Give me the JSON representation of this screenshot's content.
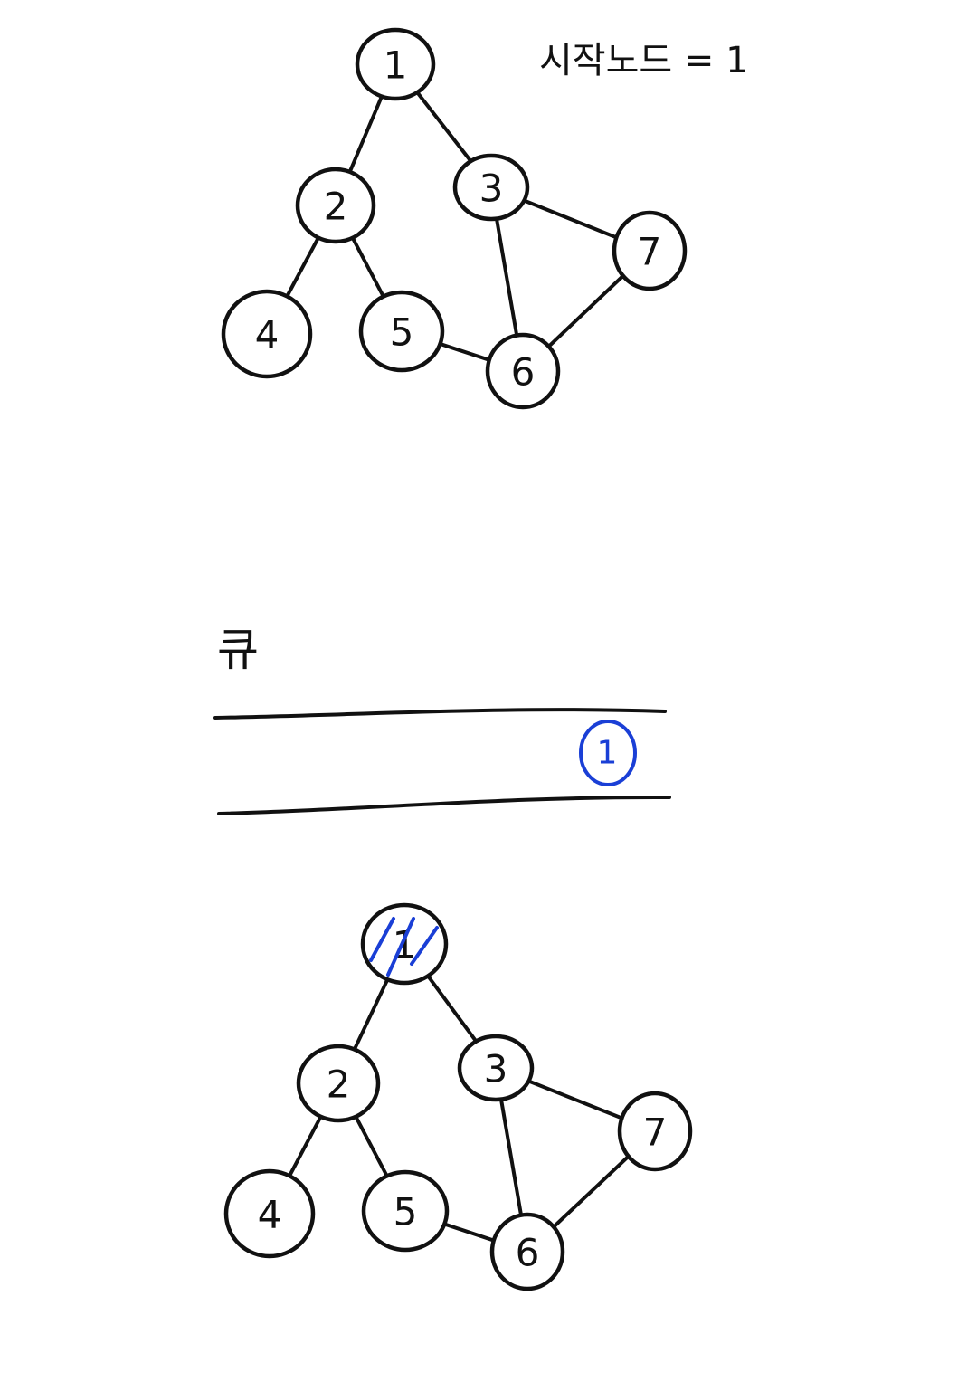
{
  "start_label": "시작노드 = 1",
  "queue_label": "큐",
  "queue_items": [
    "1"
  ],
  "graph": {
    "nodes": [
      "1",
      "2",
      "3",
      "4",
      "5",
      "6",
      "7"
    ],
    "edges": [
      [
        "1",
        "2"
      ],
      [
        "1",
        "3"
      ],
      [
        "2",
        "4"
      ],
      [
        "2",
        "5"
      ],
      [
        "3",
        "6"
      ],
      [
        "3",
        "7"
      ],
      [
        "5",
        "6"
      ],
      [
        "6",
        "7"
      ]
    ]
  },
  "visited_nodes": [
    "1"
  ],
  "colors": {
    "ink": "#111111",
    "highlight": "#1a3fd6",
    "background": "#ffffff"
  }
}
